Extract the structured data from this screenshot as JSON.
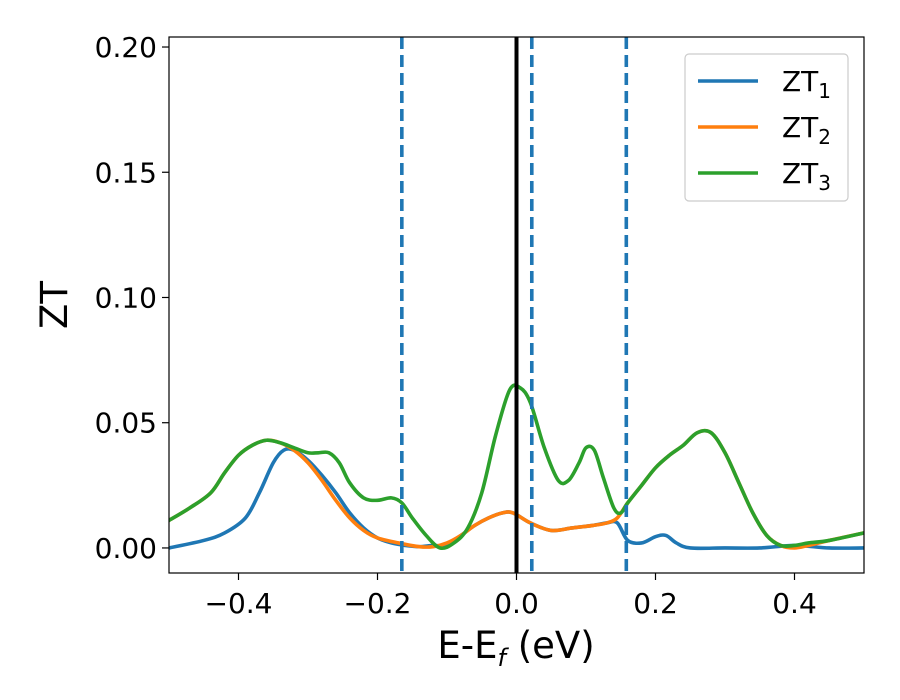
{
  "chart_data": {
    "type": "line",
    "xlabel": "E-E",
    "xlabel_sub": "f",
    "xlabel_unit": "(eV)",
    "ylabel": "ZT",
    "xlim": [
      -0.5,
      0.5
    ],
    "ylim": [
      -0.01,
      0.204
    ],
    "x_ticks": [
      -0.4,
      -0.2,
      0.0,
      0.2,
      0.4
    ],
    "x_tick_labels": [
      "−0.4",
      "−0.2",
      "0.0",
      "0.2",
      "0.4"
    ],
    "y_ticks": [
      0.0,
      0.05,
      0.1,
      0.15,
      0.2
    ],
    "y_tick_labels": [
      "0.00",
      "0.05",
      "0.10",
      "0.15",
      "0.20"
    ],
    "grid": false,
    "legend_position": "top-right",
    "reference_lines": {
      "solid_vertical": {
        "x": 0.0,
        "color": "#000000"
      },
      "dashed_vertical": {
        "x": [
          -0.165,
          0.022,
          0.158
        ],
        "color": "#1f77b4"
      }
    },
    "series": [
      {
        "name": "ZT",
        "name_sub": "1",
        "color": "#1f77b4",
        "points": [
          [
            -0.5,
            0.0
          ],
          [
            -0.45,
            0.003
          ],
          [
            -0.42,
            0.006
          ],
          [
            -0.39,
            0.012
          ],
          [
            -0.37,
            0.022
          ],
          [
            -0.35,
            0.034
          ],
          [
            -0.335,
            0.039
          ],
          [
            -0.32,
            0.039
          ],
          [
            -0.3,
            0.035
          ],
          [
            -0.28,
            0.029
          ],
          [
            -0.26,
            0.022
          ],
          [
            -0.24,
            0.014
          ],
          [
            -0.22,
            0.008
          ],
          [
            -0.2,
            0.004
          ],
          [
            -0.18,
            0.002
          ],
          [
            -0.16,
            0.001
          ],
          [
            -0.14,
            0.0005
          ],
          [
            -0.12,
            0.001
          ],
          [
            -0.1,
            0.001
          ],
          [
            -0.08,
            0.005
          ],
          [
            -0.06,
            0.009
          ],
          [
            -0.04,
            0.012
          ],
          [
            -0.02,
            0.014
          ],
          [
            -0.005,
            0.014
          ],
          [
            0.02,
            0.01
          ],
          [
            0.05,
            0.007
          ],
          [
            0.08,
            0.008
          ],
          [
            0.11,
            0.009
          ],
          [
            0.13,
            0.01
          ],
          [
            0.145,
            0.01
          ],
          [
            0.16,
            0.003
          ],
          [
            0.18,
            0.002
          ],
          [
            0.2,
            0.0045
          ],
          [
            0.215,
            0.005
          ],
          [
            0.23,
            0.002
          ],
          [
            0.25,
            0.0
          ],
          [
            0.3,
            0.0
          ],
          [
            0.35,
            0.0
          ],
          [
            0.4,
            0.001
          ],
          [
            0.45,
            0.0
          ],
          [
            0.5,
            0.0
          ]
        ]
      },
      {
        "name": "ZT",
        "name_sub": "2",
        "color": "#ff7f0e",
        "points": [
          [
            -0.5,
            0.011
          ],
          [
            -0.47,
            0.016
          ],
          [
            -0.44,
            0.022
          ],
          [
            -0.42,
            0.03
          ],
          [
            -0.4,
            0.037
          ],
          [
            -0.38,
            0.041
          ],
          [
            -0.36,
            0.043
          ],
          [
            -0.34,
            0.042
          ],
          [
            -0.32,
            0.039
          ],
          [
            -0.3,
            0.034
          ],
          [
            -0.28,
            0.027
          ],
          [
            -0.26,
            0.019
          ],
          [
            -0.24,
            0.012
          ],
          [
            -0.22,
            0.007
          ],
          [
            -0.2,
            0.004
          ],
          [
            -0.17,
            0.002
          ],
          [
            -0.14,
            0.0005
          ],
          [
            -0.12,
            0.0005
          ],
          [
            -0.1,
            0.002
          ],
          [
            -0.08,
            0.005
          ],
          [
            -0.06,
            0.009
          ],
          [
            -0.04,
            0.012
          ],
          [
            -0.02,
            0.014
          ],
          [
            -0.005,
            0.014
          ],
          [
            0.02,
            0.01
          ],
          [
            0.05,
            0.007
          ],
          [
            0.08,
            0.008
          ],
          [
            0.11,
            0.009
          ],
          [
            0.13,
            0.01
          ],
          [
            0.145,
            0.012
          ],
          [
            0.16,
            0.018
          ],
          [
            0.18,
            0.025
          ],
          [
            0.2,
            0.032
          ],
          [
            0.22,
            0.037
          ],
          [
            0.24,
            0.041
          ],
          [
            0.26,
            0.046
          ],
          [
            0.28,
            0.046
          ],
          [
            0.3,
            0.038
          ],
          [
            0.32,
            0.026
          ],
          [
            0.34,
            0.014
          ],
          [
            0.36,
            0.005
          ],
          [
            0.38,
            0.001
          ],
          [
            0.4,
            0.0
          ],
          [
            0.42,
            0.001
          ],
          [
            0.45,
            0.003
          ],
          [
            0.5,
            0.006
          ]
        ]
      },
      {
        "name": "ZT",
        "name_sub": "3",
        "color": "#2ca02c",
        "points": [
          [
            -0.5,
            0.011
          ],
          [
            -0.47,
            0.016
          ],
          [
            -0.44,
            0.022
          ],
          [
            -0.42,
            0.03
          ],
          [
            -0.4,
            0.037
          ],
          [
            -0.38,
            0.041
          ],
          [
            -0.36,
            0.043
          ],
          [
            -0.34,
            0.042
          ],
          [
            -0.32,
            0.04
          ],
          [
            -0.3,
            0.038
          ],
          [
            -0.285,
            0.038
          ],
          [
            -0.27,
            0.038
          ],
          [
            -0.255,
            0.034
          ],
          [
            -0.24,
            0.026
          ],
          [
            -0.22,
            0.02
          ],
          [
            -0.2,
            0.019
          ],
          [
            -0.18,
            0.02
          ],
          [
            -0.165,
            0.018
          ],
          [
            -0.15,
            0.012
          ],
          [
            -0.13,
            0.005
          ],
          [
            -0.11,
            0.0
          ],
          [
            -0.09,
            0.002
          ],
          [
            -0.07,
            0.008
          ],
          [
            -0.05,
            0.022
          ],
          [
            -0.03,
            0.045
          ],
          [
            -0.01,
            0.063
          ],
          [
            0.005,
            0.064
          ],
          [
            0.02,
            0.058
          ],
          [
            0.04,
            0.04
          ],
          [
            0.06,
            0.027
          ],
          [
            0.075,
            0.027
          ],
          [
            0.09,
            0.034
          ],
          [
            0.1,
            0.04
          ],
          [
            0.112,
            0.039
          ],
          [
            0.125,
            0.028
          ],
          [
            0.14,
            0.016
          ],
          [
            0.15,
            0.014
          ],
          [
            0.16,
            0.018
          ],
          [
            0.18,
            0.025
          ],
          [
            0.2,
            0.032
          ],
          [
            0.22,
            0.037
          ],
          [
            0.24,
            0.041
          ],
          [
            0.26,
            0.046
          ],
          [
            0.28,
            0.046
          ],
          [
            0.3,
            0.038
          ],
          [
            0.32,
            0.026
          ],
          [
            0.34,
            0.014
          ],
          [
            0.36,
            0.005
          ],
          [
            0.38,
            0.001
          ],
          [
            0.4,
            0.001
          ],
          [
            0.42,
            0.002
          ],
          [
            0.45,
            0.003
          ],
          [
            0.5,
            0.006
          ]
        ]
      }
    ]
  }
}
